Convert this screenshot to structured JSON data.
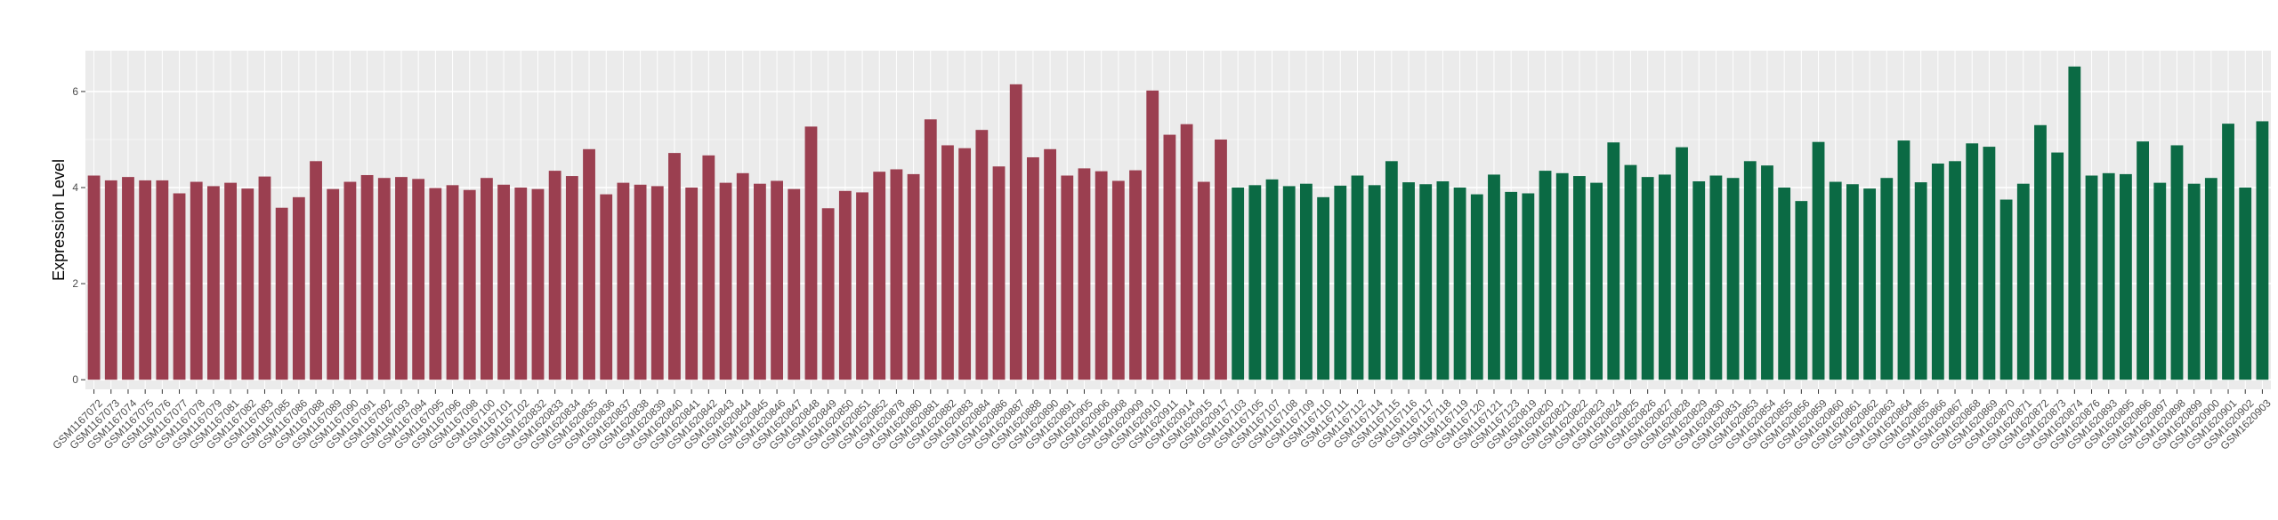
{
  "chart_data": {
    "type": "bar",
    "title": "",
    "xlabel": "",
    "ylabel": "Expression Level",
    "ylim": [
      -0.2,
      6.85
    ],
    "yticks": [
      0,
      2,
      4,
      6
    ],
    "grid": true,
    "legend": "none",
    "colors": [
      "#9b3f50",
      "#0b6a44"
    ],
    "categories": [
      "GSM1167072",
      "GSM1167073",
      "GSM1167074",
      "GSM1167075",
      "GSM1167076",
      "GSM1167077",
      "GSM1167078",
      "GSM1167079",
      "GSM1167081",
      "GSM1167082",
      "GSM1167083",
      "GSM1167085",
      "GSM1167086",
      "GSM1167088",
      "GSM1167089",
      "GSM1167090",
      "GSM1167091",
      "GSM1167092",
      "GSM1167093",
      "GSM1167094",
      "GSM1167095",
      "GSM1167096",
      "GSM1167098",
      "GSM1167100",
      "GSM1167101",
      "GSM1167102",
      "GSM1620832",
      "GSM1620833",
      "GSM1620834",
      "GSM1620835",
      "GSM1620836",
      "GSM1620837",
      "GSM1620838",
      "GSM1620839",
      "GSM1620840",
      "GSM1620841",
      "GSM1620842",
      "GSM1620843",
      "GSM1620844",
      "GSM1620845",
      "GSM1620846",
      "GSM1620847",
      "GSM1620848",
      "GSM1620849",
      "GSM1620850",
      "GSM1620851",
      "GSM1620852",
      "GSM1620878",
      "GSM1620880",
      "GSM1620881",
      "GSM1620882",
      "GSM1620883",
      "GSM1620884",
      "GSM1620886",
      "GSM1620887",
      "GSM1620888",
      "GSM1620890",
      "GSM1620891",
      "GSM1620905",
      "GSM1620906",
      "GSM1620908",
      "GSM1620909",
      "GSM1620910",
      "GSM1620911",
      "GSM1620914",
      "GSM1620915",
      "GSM1620917",
      "GSM1167103",
      "GSM1167105",
      "GSM1167107",
      "GSM1167108",
      "GSM1167109",
      "GSM1167110",
      "GSM1167111",
      "GSM1167112",
      "GSM1167114",
      "GSM1167115",
      "GSM1167116",
      "GSM1167117",
      "GSM1167118",
      "GSM1167119",
      "GSM1167120",
      "GSM1167121",
      "GSM1167123",
      "GSM1620819",
      "GSM1620820",
      "GSM1620821",
      "GSM1620822",
      "GSM1620823",
      "GSM1620824",
      "GSM1620825",
      "GSM1620826",
      "GSM1620827",
      "GSM1620828",
      "GSM1620829",
      "GSM1620830",
      "GSM1620831",
      "GSM1620853",
      "GSM1620854",
      "GSM1620855",
      "GSM1620856",
      "GSM1620859",
      "GSM1620860",
      "GSM1620861",
      "GSM1620862",
      "GSM1620863",
      "GSM1620864",
      "GSM1620865",
      "GSM1620866",
      "GSM1620867",
      "GSM1620868",
      "GSM1620869",
      "GSM1620870",
      "GSM1620871",
      "GSM1620872",
      "GSM1620873",
      "GSM1620874",
      "GSM1620876",
      "GSM1620893",
      "GSM1620895",
      "GSM1620896",
      "GSM1620897",
      "GSM1620898",
      "GSM1620899",
      "GSM1620900",
      "GSM1620901",
      "GSM1620902",
      "GSM1620903"
    ],
    "values": [
      4.25,
      4.15,
      4.22,
      4.15,
      4.15,
      3.88,
      4.12,
      4.03,
      4.1,
      3.98,
      4.23,
      3.58,
      3.8,
      4.55,
      3.97,
      4.12,
      4.26,
      4.2,
      4.22,
      4.18,
      3.99,
      4.05,
      3.95,
      4.2,
      4.06,
      4.0,
      3.97,
      4.35,
      4.24,
      4.8,
      3.86,
      4.1,
      4.06,
      4.03,
      4.72,
      4.0,
      4.67,
      4.1,
      4.3,
      4.08,
      4.14,
      3.97,
      5.27,
      3.57,
      3.93,
      3.9,
      4.33,
      4.38,
      4.28,
      5.42,
      4.88,
      4.82,
      5.2,
      4.44,
      6.15,
      4.63,
      4.8,
      4.25,
      4.4,
      4.34,
      4.14,
      4.36,
      6.02,
      5.1,
      5.32,
      4.12,
      5.0,
      4.0,
      4.05,
      4.17,
      4.03,
      4.08,
      3.8,
      4.04,
      4.25,
      4.05,
      4.55,
      4.11,
      4.07,
      4.13,
      4.0,
      3.86,
      4.27,
      3.91,
      3.88,
      4.35,
      4.3,
      4.24,
      4.1,
      4.94,
      4.47,
      4.22,
      4.27,
      4.84,
      4.13,
      4.25,
      4.2,
      4.55,
      4.46,
      4.0,
      3.72,
      4.95,
      4.12,
      4.07,
      3.98,
      4.2,
      4.98,
      4.11,
      4.5,
      4.55,
      4.92,
      4.85,
      3.75,
      4.08,
      5.3,
      4.73,
      6.52,
      4.25,
      4.3,
      4.28,
      4.96,
      4.1,
      4.88,
      4.08,
      4.2,
      5.33,
      4.0,
      5.38
    ],
    "group_sizes": [
      67,
      61
    ]
  }
}
